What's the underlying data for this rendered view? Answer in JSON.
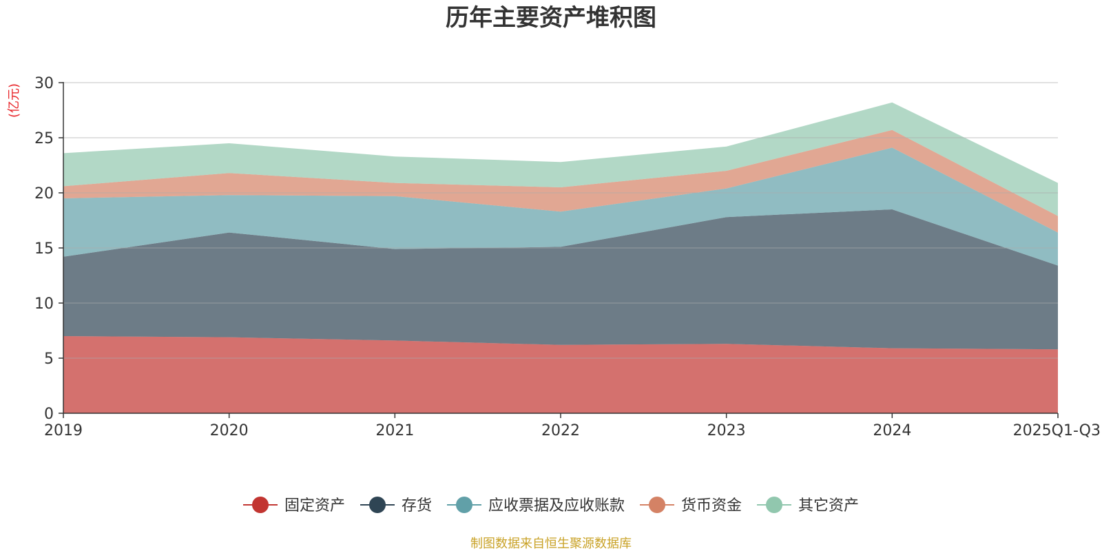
{
  "chart_data": {
    "type": "area",
    "stacked": true,
    "title": "历年主要资产堆积图",
    "unit_label": "(亿元)",
    "categories": [
      "2019",
      "2020",
      "2021",
      "2022",
      "2023",
      "2024",
      "2025Q1-Q3"
    ],
    "ylim": [
      0,
      30
    ],
    "yticks": [
      0,
      5,
      10,
      15,
      20,
      25,
      30
    ],
    "grid": true,
    "legend_position": "bottom",
    "series": [
      {
        "name": "固定资产",
        "color": "#c23531",
        "values": [
          7.0,
          6.9,
          6.6,
          6.2,
          6.3,
          5.9,
          5.8
        ]
      },
      {
        "name": "存货",
        "color": "#2f4554",
        "values": [
          7.2,
          9.5,
          8.3,
          8.9,
          11.5,
          12.6,
          7.6
        ]
      },
      {
        "name": "应收票据及应收账款",
        "color": "#61a0a8",
        "values": [
          5.3,
          3.4,
          4.8,
          3.2,
          2.6,
          5.6,
          3.0
        ]
      },
      {
        "name": "货币资金",
        "color": "#d48265",
        "values": [
          1.1,
          2.0,
          1.2,
          2.2,
          1.6,
          1.6,
          1.5
        ]
      },
      {
        "name": "其它资产",
        "color": "#91c7ae",
        "values": [
          3.0,
          2.7,
          2.4,
          2.3,
          2.2,
          2.5,
          3.0
        ]
      }
    ],
    "source": "制图数据来自恒生聚源数据库",
    "source_color": "#c9a227"
  }
}
